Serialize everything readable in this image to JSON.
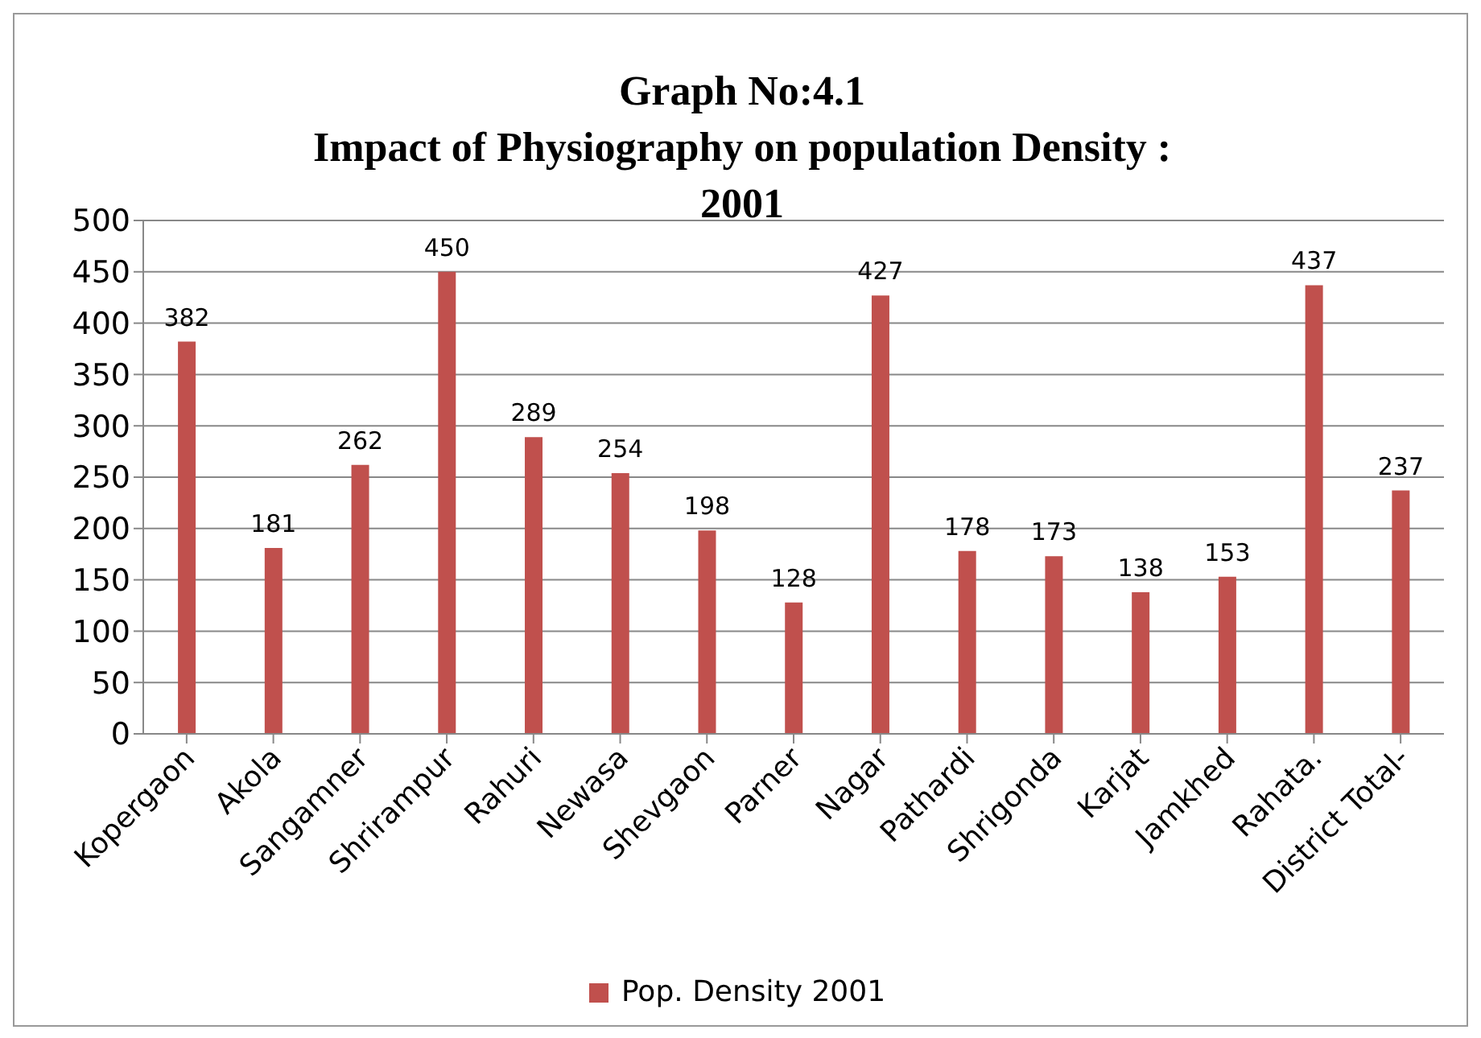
{
  "chart_data": {
    "type": "bar",
    "title": "Graph No:4.1\nImpact of Physiography on population Density :\n2001",
    "categories": [
      "Kopergaon",
      "Akola",
      "Sangamner",
      "Shrirampur",
      "Rahuri",
      "Newasa",
      "Shevgaon",
      "Parner",
      "Nagar",
      "Pathardi",
      "Shrigonda",
      "Karjat",
      "Jamkhed",
      "Rahata.",
      "District Total-"
    ],
    "series": [
      {
        "name": "Pop. Density  2001",
        "color": "#c0504d",
        "values": [
          382,
          181,
          262,
          450,
          289,
          254,
          198,
          128,
          427,
          178,
          173,
          138,
          153,
          437,
          237
        ]
      }
    ],
    "ylim": [
      0,
      500
    ],
    "yticks": [
      0,
      50,
      100,
      150,
      200,
      250,
      300,
      350,
      400,
      450,
      500
    ],
    "grid": "y",
    "legend": "bottom",
    "data_labels": true
  }
}
